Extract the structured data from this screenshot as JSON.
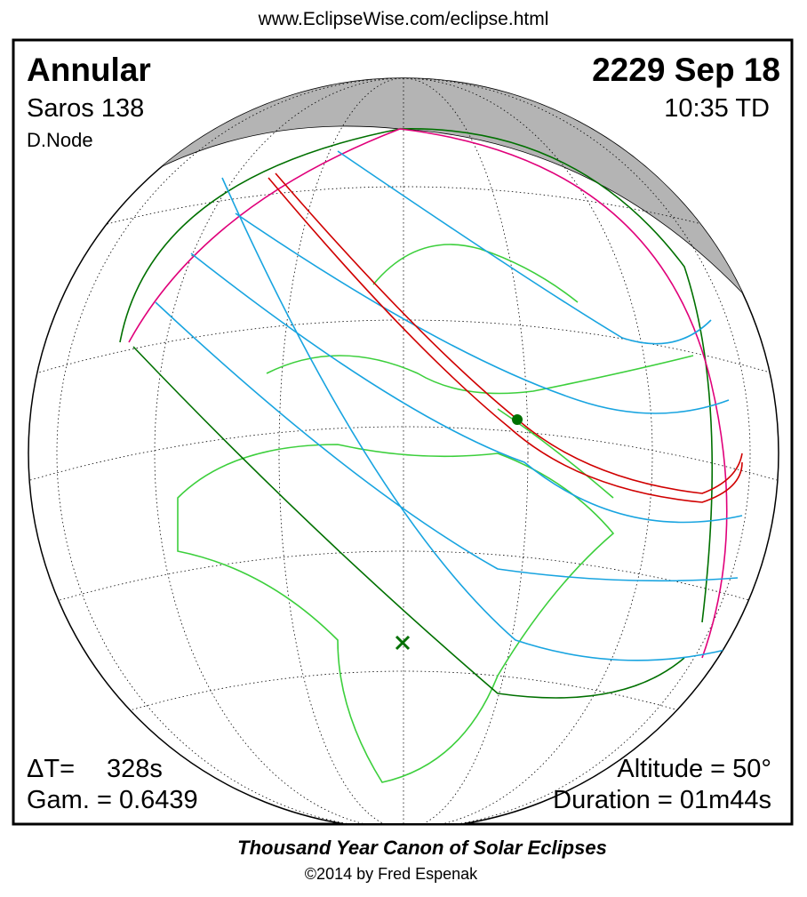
{
  "header": {
    "url": "www.EclipseWise.com/eclipse.html",
    "type": "Annular",
    "date": "2229 Sep 18",
    "saros": "Saros 138",
    "time": "10:35 TD",
    "node": "D.Node"
  },
  "stats": {
    "delta_t_label": "ΔT=",
    "delta_t": "328s",
    "gamma": "Gam. = 0.6439",
    "altitude": "Altitude = 50°",
    "duration": "Duration = 01m44s"
  },
  "footer": {
    "title": "Thousand Year Canon of Solar Eclipses",
    "copyright": "©2014 by Fred Espenak"
  }
}
